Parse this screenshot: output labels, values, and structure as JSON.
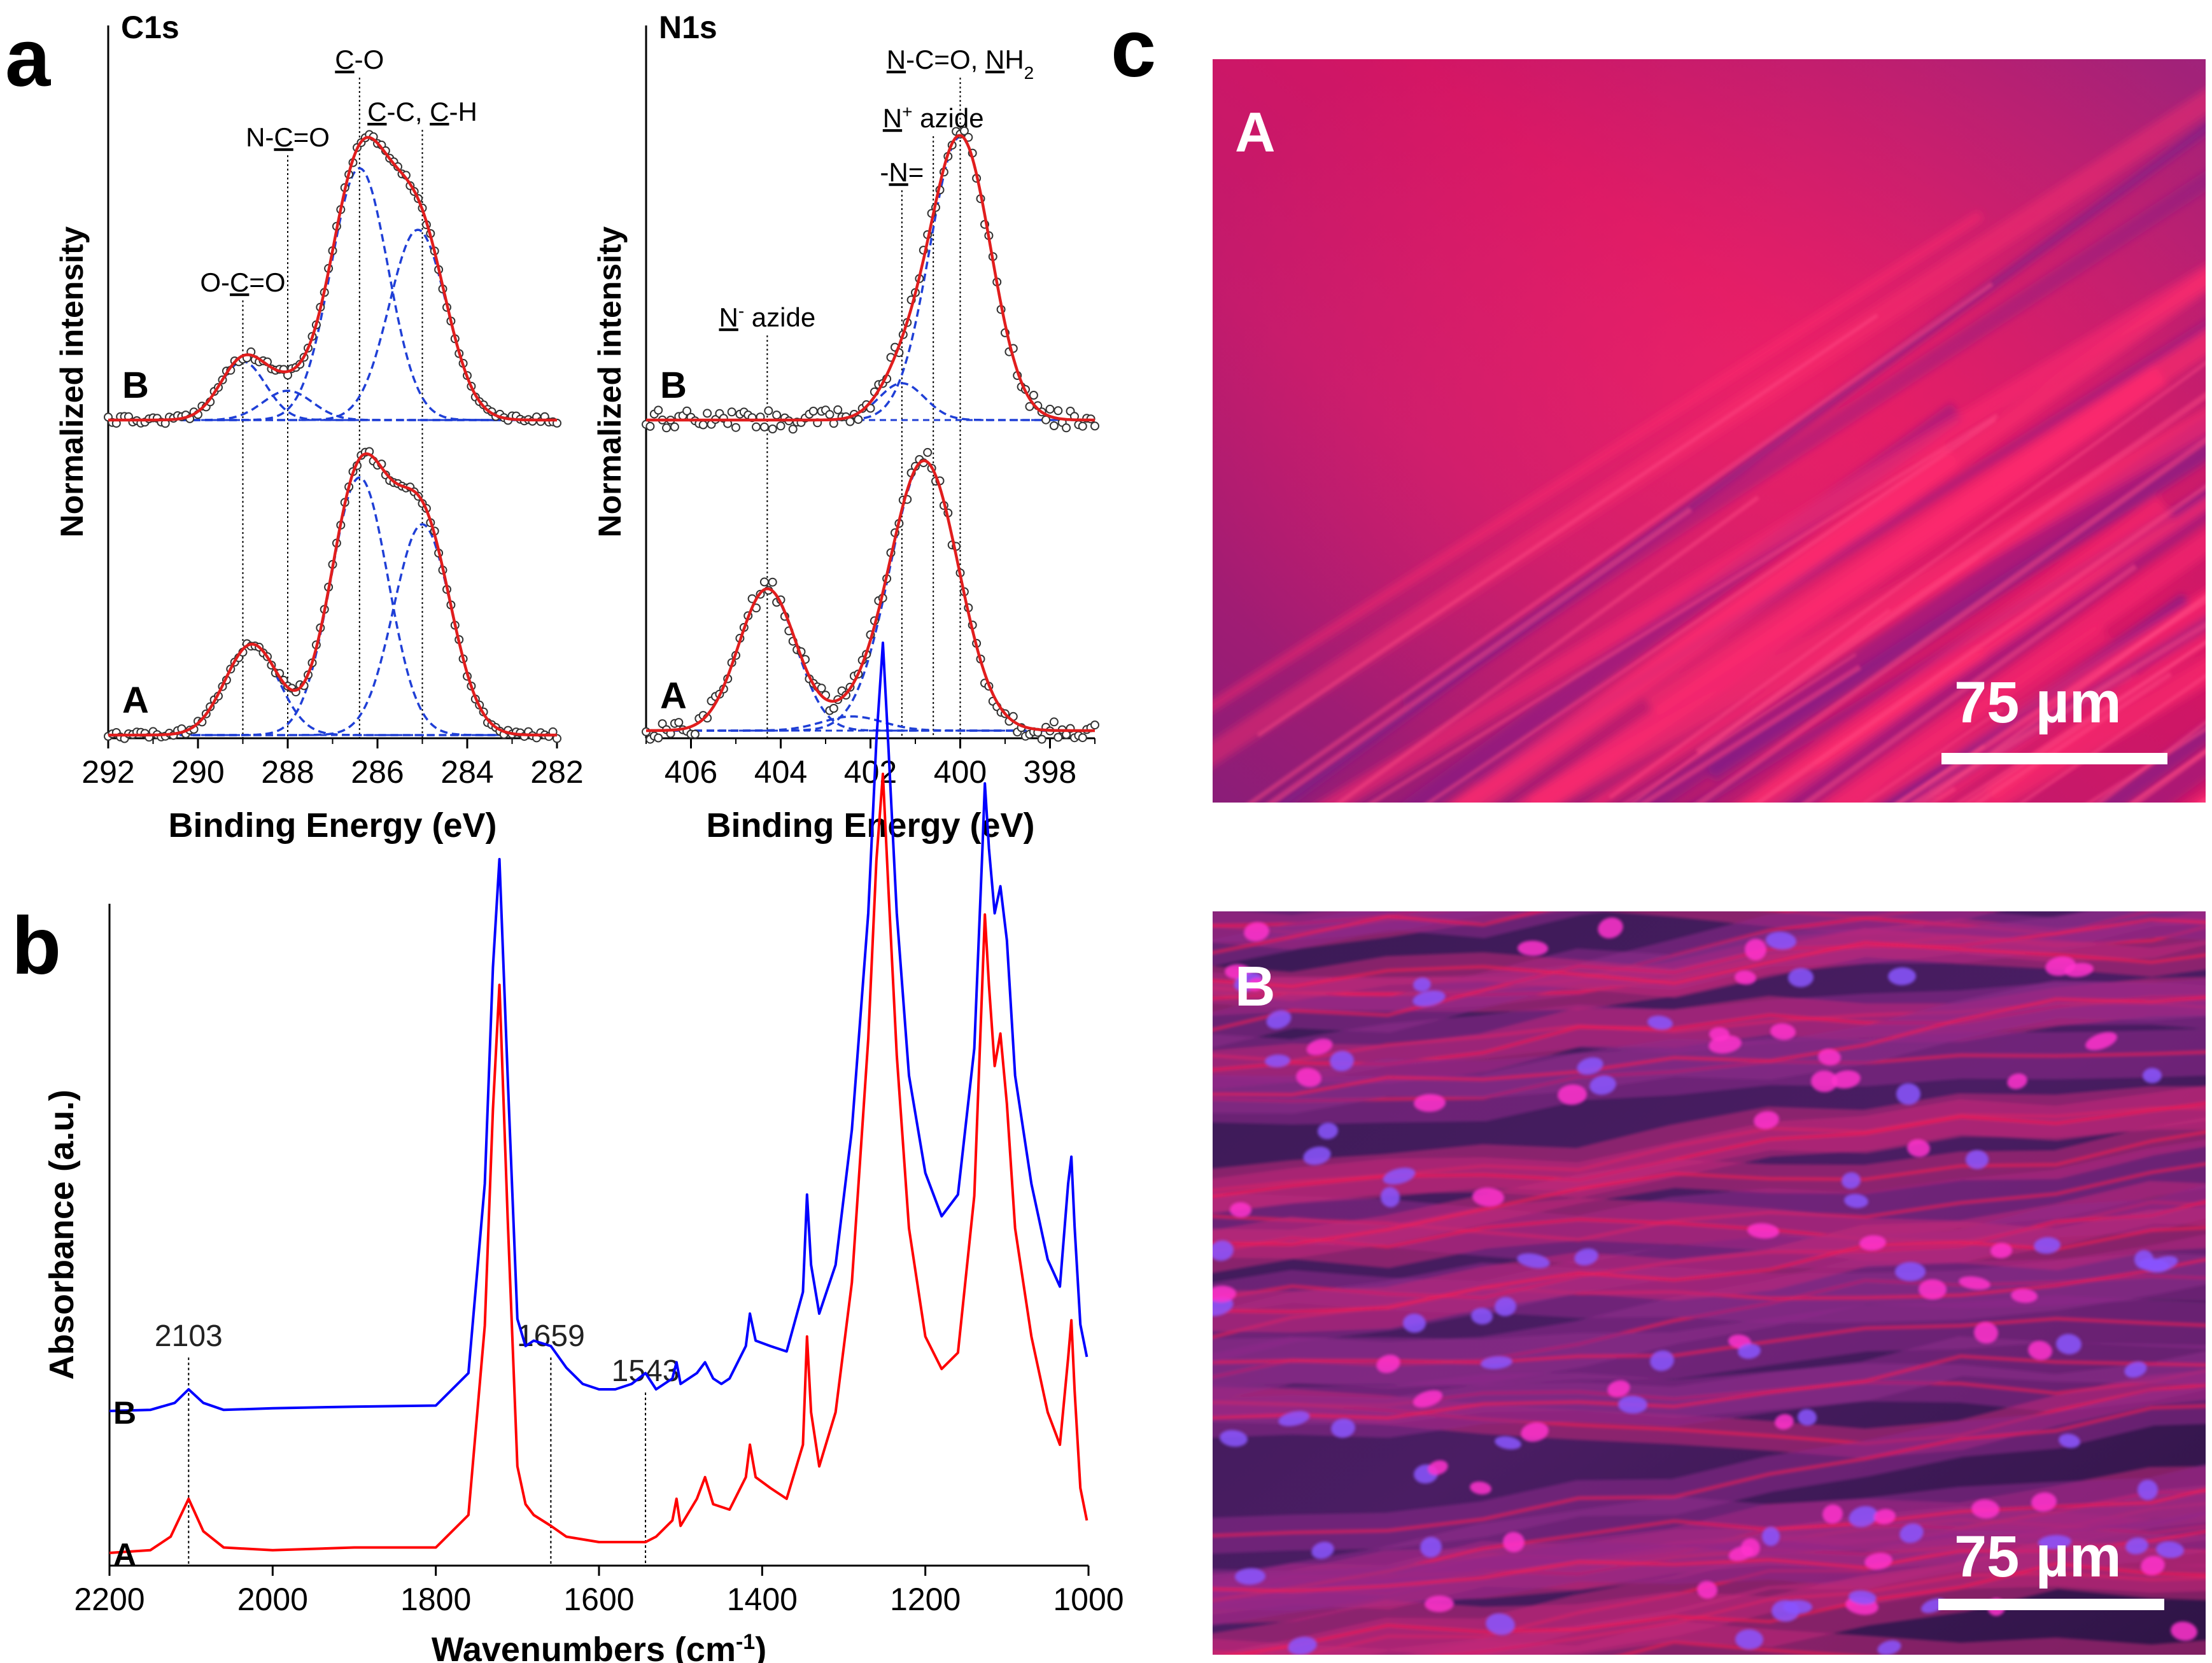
{
  "panels": {
    "a": "a",
    "b": "b",
    "c": "c"
  },
  "xps": {
    "c1s": {
      "title": "C1s",
      "ylabel": "Normalized intensity",
      "xlabel": "Binding Energy (eV)",
      "xlim": [
        292,
        282
      ],
      "ticks": [
        "292",
        "290",
        "288",
        "286",
        "284",
        "282"
      ],
      "curve_labels": [
        "B",
        "A"
      ],
      "annotations": [
        {
          "pre": "O-",
          "u": "C",
          "post": "=O",
          "energy": 289.0
        },
        {
          "pre": "N-",
          "u": "C",
          "post": "=O",
          "energy": 288.0
        },
        {
          "pre": "",
          "u": "C",
          "post": "-O",
          "energy": 286.4
        },
        {
          "pre": "",
          "u": "C",
          "post": "-C, ",
          "u2": "C",
          "post2": "-H",
          "energy": 285.0
        }
      ],
      "peaks_B": [
        {
          "center": 289.0,
          "height": 0.2,
          "fwhm": 1.2
        },
        {
          "center": 288.0,
          "height": 0.1,
          "fwhm": 1.3
        },
        {
          "center": 286.4,
          "height": 0.86,
          "fwhm": 1.5
        },
        {
          "center": 285.1,
          "height": 0.65,
          "fwhm": 1.5
        }
      ],
      "peaks_A": [
        {
          "center": 288.8,
          "height": 0.31,
          "fwhm": 1.4
        },
        {
          "center": 286.4,
          "height": 0.88,
          "fwhm": 1.5
        },
        {
          "center": 285.0,
          "height": 0.72,
          "fwhm": 1.5
        }
      ]
    },
    "n1s": {
      "title": "N1s",
      "ylabel": "Normalized intensity",
      "xlabel": "Binding Energy (eV)",
      "xlim": [
        407,
        397
      ],
      "ticks": [
        "406",
        "404",
        "402",
        "400",
        "398"
      ],
      "curve_labels": [
        "B",
        "A"
      ],
      "annotations": [
        {
          "pre": "",
          "u": "N",
          "sup": "-",
          "post": " azide",
          "energy": 404.3
        },
        {
          "pre": "-",
          "u": "N",
          "post": "=",
          "energy": 401.3
        },
        {
          "pre": "",
          "u": "N",
          "sup": "+",
          "post": " azide",
          "energy": 400.6
        },
        {
          "pre": "",
          "u": "N",
          "post": "-C=O, ",
          "u2": "N",
          "post2": "H",
          "sub2": "2",
          "energy": 400.0
        }
      ],
      "peaks_B": [
        {
          "center": 400.0,
          "height": 1.0,
          "fwhm": 1.6
        },
        {
          "center": 401.3,
          "height": 0.13,
          "fwhm": 1.2
        }
      ],
      "peaks_A": [
        {
          "center": 404.3,
          "height": 0.5,
          "fwhm": 1.5
        },
        {
          "center": 400.8,
          "height": 0.95,
          "fwhm": 1.8
        },
        {
          "center": 402.4,
          "height": 0.05,
          "fwhm": 1.6
        }
      ]
    }
  },
  "chart_data": {
    "type": "line",
    "title": "",
    "xlabel": "Wavenumbers (cm⁻¹)",
    "xlabel_base": "Wavenumbers (cm",
    "xlabel_sup": "-1",
    "xlabel_end": ")",
    "ylabel": "Absorbance (a.u.)",
    "xlim": [
      2200,
      1000
    ],
    "ticks": [
      "2200",
      "2000",
      "1800",
      "1600",
      "1400",
      "1200",
      "1000"
    ],
    "series": [
      {
        "name": "B",
        "color": "#0000ff",
        "x": [
          2200,
          2150,
          2120,
          2103,
          2085,
          2060,
          2000,
          1900,
          1800,
          1760,
          1740,
          1730,
          1722,
          1712,
          1700,
          1690,
          1680,
          1659,
          1640,
          1620,
          1600,
          1580,
          1560,
          1543,
          1530,
          1510,
          1505,
          1500,
          1480,
          1470,
          1460,
          1450,
          1440,
          1420,
          1415,
          1408,
          1390,
          1370,
          1350,
          1345,
          1340,
          1330,
          1310,
          1290,
          1270,
          1260,
          1252,
          1245,
          1235,
          1220,
          1200,
          1180,
          1160,
          1140,
          1130,
          1127,
          1122,
          1115,
          1108,
          1100,
          1090,
          1070,
          1050,
          1035,
          1025,
          1021,
          1017,
          1010,
          1002
        ],
        "y": [
          0.08,
          0.082,
          0.095,
          0.12,
          0.095,
          0.082,
          0.085,
          0.088,
          0.09,
          0.15,
          0.5,
          0.9,
          1.1,
          0.7,
          0.25,
          0.2,
          0.21,
          0.2,
          0.16,
          0.13,
          0.12,
          0.12,
          0.13,
          0.15,
          0.12,
          0.14,
          0.17,
          0.13,
          0.15,
          0.17,
          0.14,
          0.13,
          0.14,
          0.2,
          0.26,
          0.21,
          0.2,
          0.19,
          0.3,
          0.48,
          0.35,
          0.26,
          0.35,
          0.6,
          1.0,
          1.32,
          1.5,
          1.3,
          1.0,
          0.7,
          0.52,
          0.44,
          0.48,
          0.75,
          1.12,
          1.24,
          1.12,
          1.0,
          1.05,
          0.95,
          0.7,
          0.5,
          0.36,
          0.31,
          0.5,
          0.55,
          0.42,
          0.24,
          0.18
        ]
      },
      {
        "name": "A",
        "color": "#ff0000",
        "x": [
          2200,
          2150,
          2125,
          2103,
          2085,
          2060,
          2000,
          1900,
          1800,
          1760,
          1740,
          1730,
          1722,
          1712,
          1700,
          1690,
          1680,
          1659,
          1640,
          1600,
          1560,
          1543,
          1530,
          1510,
          1505,
          1500,
          1480,
          1470,
          1460,
          1440,
          1420,
          1415,
          1408,
          1390,
          1370,
          1350,
          1345,
          1340,
          1330,
          1310,
          1290,
          1270,
          1260,
          1252,
          1245,
          1235,
          1220,
          1200,
          1180,
          1160,
          1140,
          1130,
          1127,
          1122,
          1115,
          1108,
          1100,
          1090,
          1070,
          1050,
          1035,
          1025,
          1021,
          1017,
          1010,
          1002
        ],
        "y": [
          0.0,
          0.005,
          0.03,
          0.1,
          0.04,
          0.01,
          0.005,
          0.01,
          0.01,
          0.07,
          0.42,
          0.82,
          1.05,
          0.62,
          0.16,
          0.09,
          0.07,
          0.05,
          0.03,
          0.02,
          0.02,
          0.02,
          0.03,
          0.06,
          0.1,
          0.05,
          0.1,
          0.14,
          0.09,
          0.08,
          0.14,
          0.2,
          0.14,
          0.12,
          0.1,
          0.2,
          0.4,
          0.26,
          0.16,
          0.26,
          0.5,
          0.95,
          1.28,
          1.44,
          1.22,
          0.92,
          0.6,
          0.4,
          0.34,
          0.37,
          0.66,
          1.06,
          1.18,
          1.05,
          0.9,
          0.96,
          0.83,
          0.6,
          0.4,
          0.26,
          0.2,
          0.36,
          0.43,
          0.3,
          0.12,
          0.06
        ]
      }
    ],
    "annotations": [
      {
        "text": "2103",
        "x": 2103
      },
      {
        "text": "1659",
        "x": 1659
      },
      {
        "text": "1543",
        "x": 1543
      }
    ],
    "curve_labels": [
      "B",
      "A"
    ]
  },
  "micrographs": {
    "top": {
      "label": "A",
      "scale": "75 µm"
    },
    "bottom": {
      "label": "B",
      "scale": "75 µm"
    }
  }
}
